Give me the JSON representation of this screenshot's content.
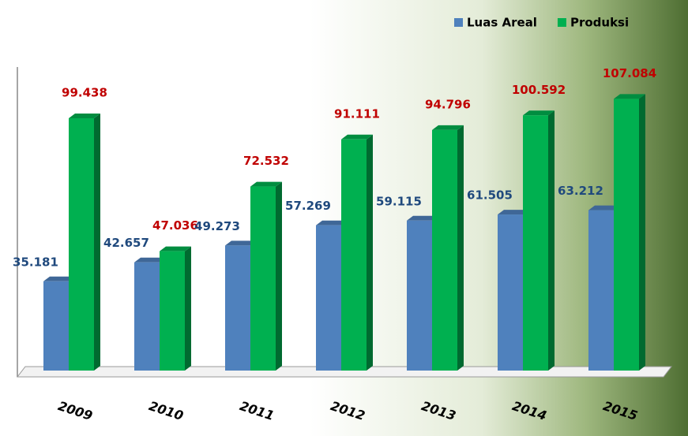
{
  "chart_data": {
    "type": "bar",
    "categories": [
      "2009",
      "2010",
      "2011",
      "2012",
      "2013",
      "2014",
      "2015"
    ],
    "series": [
      {
        "name": "Luas Areal",
        "color": "#4f81bd",
        "label_color": "#1f497d",
        "values": [
          35.181,
          42.657,
          49.273,
          57.269,
          59.115,
          61.505,
          63.212
        ]
      },
      {
        "name": "Produksi",
        "color": "#00b050",
        "label_color": "#c00000",
        "values": [
          99.438,
          47.036,
          72.532,
          91.111,
          94.796,
          100.592,
          107.084
        ]
      }
    ],
    "ylim": [
      0,
      110
    ],
    "legend": "top-right"
  }
}
